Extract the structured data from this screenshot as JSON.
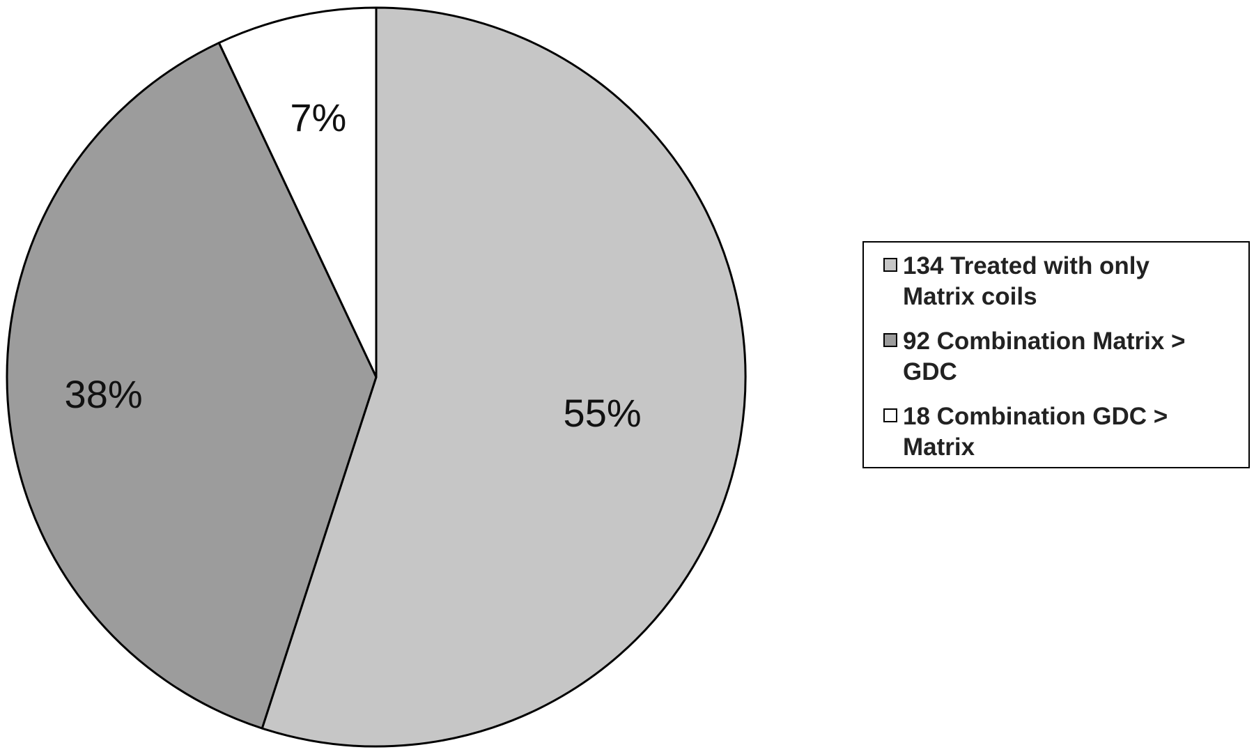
{
  "chart_data": {
    "type": "pie",
    "title": "",
    "slices": [
      {
        "label": "134 Treated with only Matrix coils",
        "count": 134,
        "percent_label": "55%",
        "value": 55,
        "color": "#c6c6c6"
      },
      {
        "label": "92 Combination Matrix > GDC",
        "count": 92,
        "percent_label": "38%",
        "value": 38,
        "color": "#9c9c9c"
      },
      {
        "label": "18 Combination GDC > Matrix",
        "count": 18,
        "percent_label": "7%",
        "value": 7,
        "color": "#ffffff"
      }
    ],
    "start_angle": "12 o'clock",
    "direction": "clockwise",
    "legend": {
      "position": "right",
      "items": [
        {
          "line1": "134 Treated with only",
          "line2": "Matrix coils",
          "color": "#c6c6c6"
        },
        {
          "line1": "92 Combination Matrix >",
          "line2": "GDC",
          "color": "#9c9c9c"
        },
        {
          "line1": "18 Combination GDC >",
          "line2": "Matrix",
          "color": "#ffffff"
        }
      ]
    }
  }
}
